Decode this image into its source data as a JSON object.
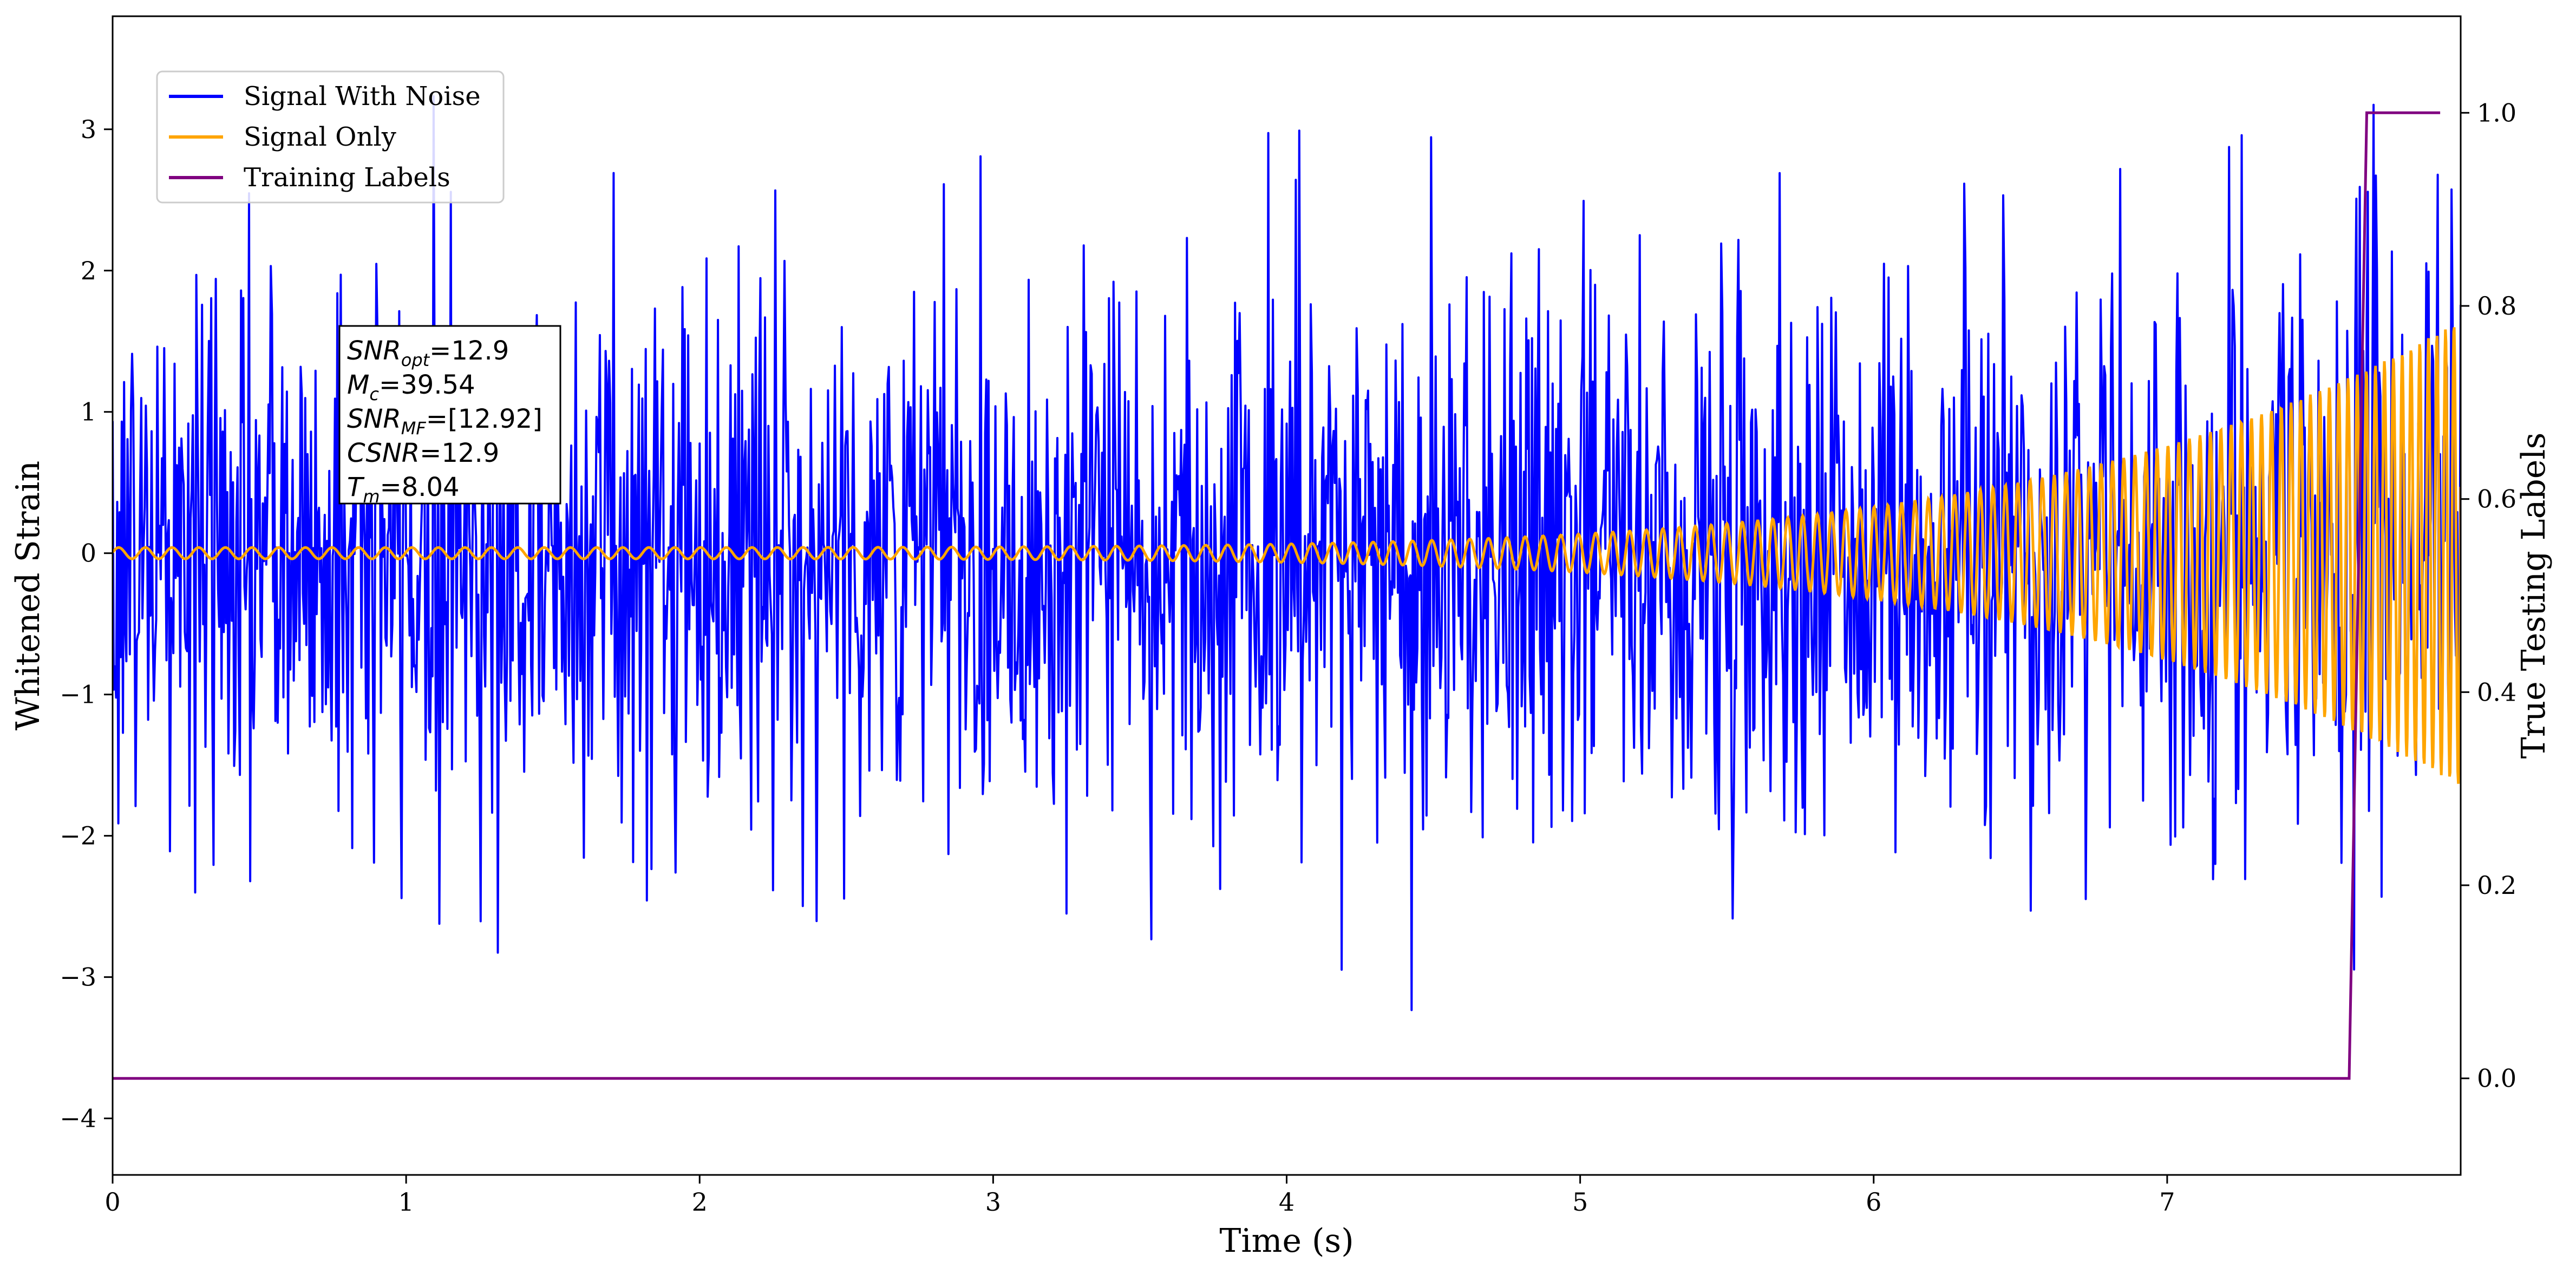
{
  "chart_data": {
    "type": "line",
    "xlabel": "Time (s)",
    "ylabel": "Whitened Strain",
    "y2label": "True Testing Labels",
    "xlim": [
      0,
      8
    ],
    "ylim": [
      -4.4,
      3.8
    ],
    "y2lim": [
      -0.1,
      1.1
    ],
    "x_ticks": [
      {
        "value": 0,
        "label": "0"
      },
      {
        "value": 1,
        "label": "1"
      },
      {
        "value": 2,
        "label": "2"
      },
      {
        "value": 3,
        "label": "3"
      },
      {
        "value": 4,
        "label": "4"
      },
      {
        "value": 5,
        "label": "5"
      },
      {
        "value": 6,
        "label": "6"
      },
      {
        "value": 7,
        "label": "7"
      }
    ],
    "y_ticks": [
      {
        "value": 3,
        "label": "3"
      },
      {
        "value": 2,
        "label": "2"
      },
      {
        "value": 1,
        "label": "1"
      },
      {
        "value": 0,
        "label": "0"
      },
      {
        "value": -1,
        "label": "−1"
      },
      {
        "value": -2,
        "label": "−2"
      },
      {
        "value": -3,
        "label": "−3"
      },
      {
        "value": -4,
        "label": "−4"
      }
    ],
    "y2_ticks": [
      {
        "value": 1.0,
        "label": "1.0"
      },
      {
        "value": 0.8,
        "label": "0.8"
      },
      {
        "value": 0.6,
        "label": "0.6"
      },
      {
        "value": 0.4,
        "label": "0.4"
      },
      {
        "value": 0.2,
        "label": "0.2"
      },
      {
        "value": 0.0,
        "label": "0.0"
      }
    ],
    "legend_position": "top-left",
    "grid": false,
    "series": [
      {
        "name": "Signal With Noise",
        "color": "#0000ff",
        "axis": "left",
        "kind": "noise",
        "amplitude_std": 1.0,
        "y_range": [
          -4.05,
          3.42
        ],
        "x_range": [
          0,
          8
        ]
      },
      {
        "name": "Signal Only",
        "color": "#ffa500",
        "axis": "left",
        "kind": "chirp",
        "x_range": [
          0,
          8
        ],
        "start_amplitude": 0.04,
        "end_amplitude": 1.65,
        "start_frequency_hz": 11,
        "end_frequency_hz": 35
      },
      {
        "name": "Training Labels",
        "color": "#800080",
        "axis": "right",
        "kind": "step",
        "points": [
          [
            0,
            0.0
          ],
          [
            7.62,
            0.0
          ],
          [
            7.68,
            1.0
          ],
          [
            7.93,
            1.0
          ]
        ]
      }
    ],
    "annotation": {
      "lines": [
        {
          "main": "SNR",
          "sub": "opt",
          "value": "=12.9"
        },
        {
          "main": "M",
          "sub": "c",
          "value": "=39.54"
        },
        {
          "main": "SNR",
          "sub": "MF",
          "value": "=[12.92]"
        },
        {
          "main": "CSNR",
          "sub": "",
          "value": "=12.9"
        },
        {
          "main": "T",
          "sub": "m",
          "value": "=8.04"
        }
      ]
    }
  }
}
